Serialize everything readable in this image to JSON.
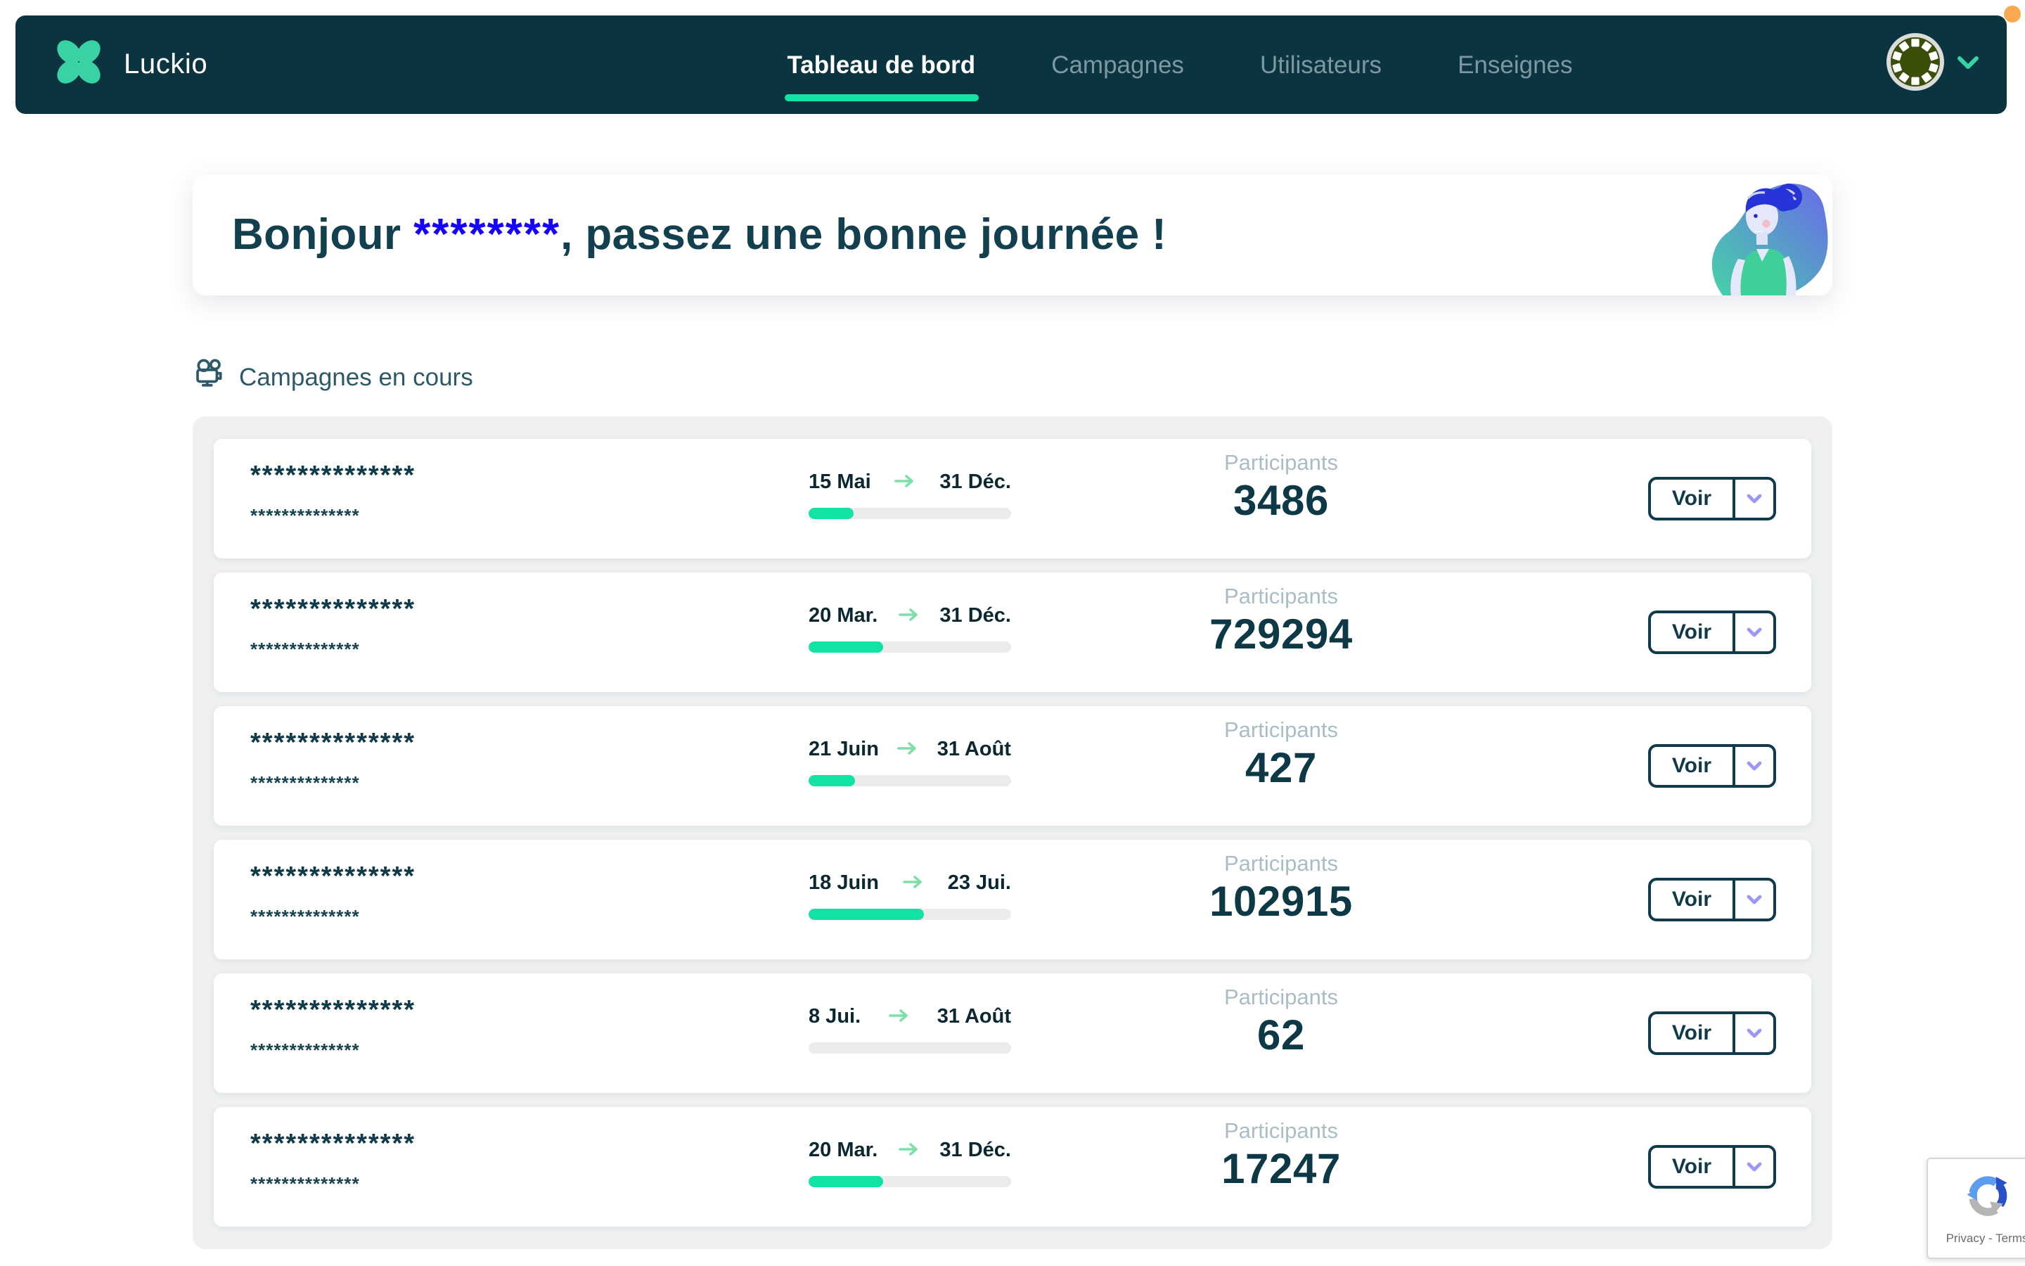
{
  "colors": {
    "navbar_bg": "#0b3441",
    "accent_green": "#13e3a5",
    "masked_name_blue": "#1502fe",
    "chevron_violet": "#9b97f6",
    "notification_orange": "#f9a94f"
  },
  "brand": {
    "name": "Luckio",
    "logo_icon": "clover"
  },
  "nav": {
    "items": [
      {
        "label": "Tableau de bord",
        "active": true
      },
      {
        "label": "Campagnes",
        "active": false
      },
      {
        "label": "Utilisateurs",
        "active": false
      },
      {
        "label": "Enseignes",
        "active": false
      }
    ]
  },
  "user_menu": {
    "avatar_icon": "dotted-circle-avatar",
    "chevron_icon": "chevron-down"
  },
  "greeting": {
    "prefix": "Bonjour ",
    "masked_name": "********",
    "suffix": ", passez une bonne journée !"
  },
  "section": {
    "icon": "movie-camera",
    "title": "Campagnes en cours"
  },
  "labels": {
    "participants": "Participants",
    "view": "Voir"
  },
  "campaigns": [
    {
      "masked_title": "**************",
      "masked_subtitle": "**************",
      "start_date": "15 Mai",
      "end_date": "31 Déc.",
      "progress_pct": 22,
      "participants": "3486"
    },
    {
      "masked_title": "**************",
      "masked_subtitle": "**************",
      "start_date": "20 Mar.",
      "end_date": "31 Déc.",
      "progress_pct": 37,
      "participants": "729294"
    },
    {
      "masked_title": "**************",
      "masked_subtitle": "**************",
      "start_date": "21 Juin",
      "end_date": "31 Août",
      "progress_pct": 23,
      "participants": "427"
    },
    {
      "masked_title": "**************",
      "masked_subtitle": "**************",
      "start_date": "18 Juin",
      "end_date": "23 Jui.",
      "progress_pct": 57,
      "participants": "102915"
    },
    {
      "masked_title": "**************",
      "masked_subtitle": "**************",
      "start_date": "8 Jui.",
      "end_date": "31 Août",
      "progress_pct": 0,
      "participants": "62"
    },
    {
      "masked_title": "**************",
      "masked_subtitle": "**************",
      "start_date": "20 Mar.",
      "end_date": "31 Déc.",
      "progress_pct": 37,
      "participants": "17247"
    }
  ],
  "recaptcha": {
    "text": "Privacy - Terms"
  }
}
